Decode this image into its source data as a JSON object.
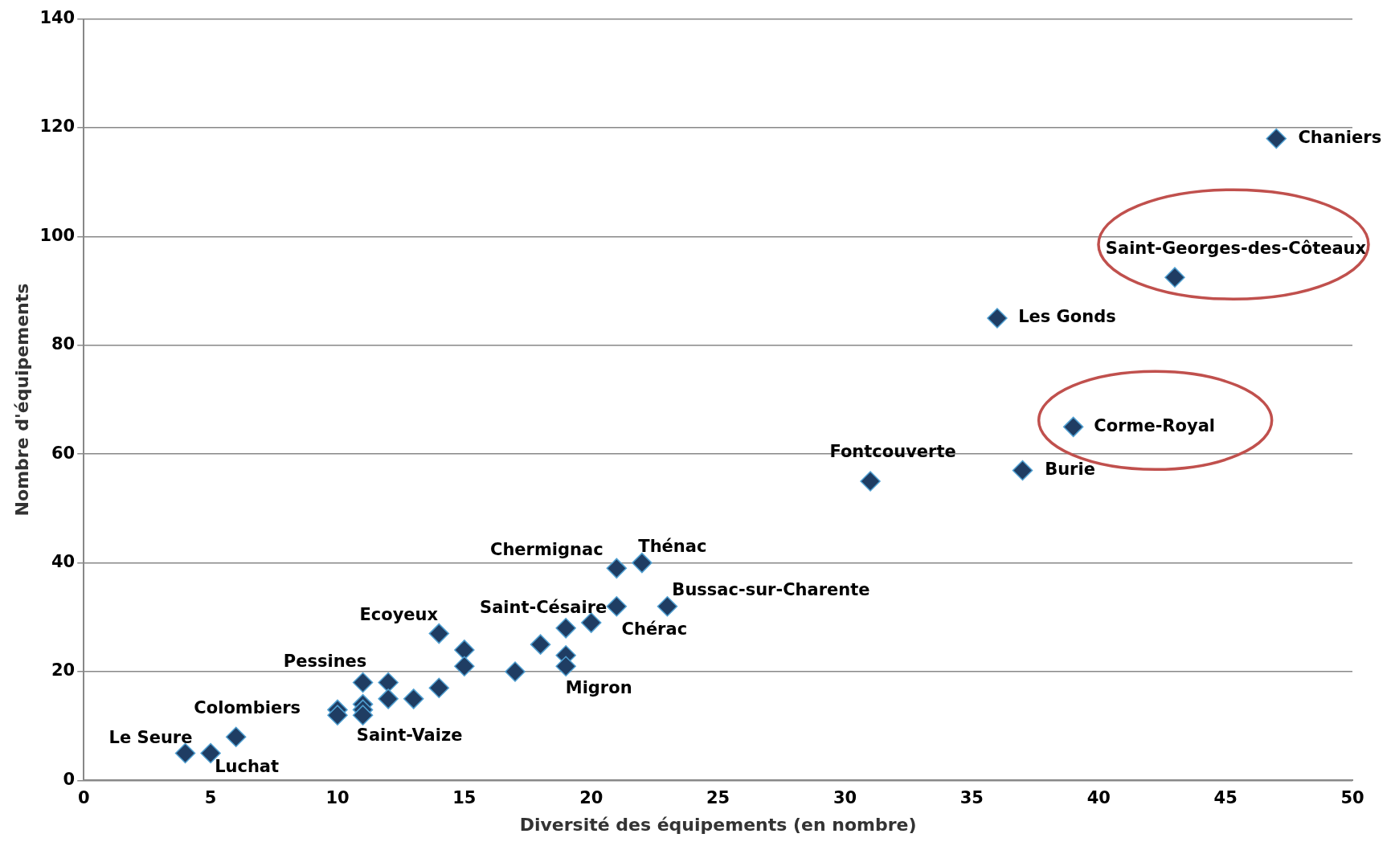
{
  "chart_data": {
    "type": "scatter",
    "xlabel": "Diversité des équipements (en nombre)",
    "ylabel": "Nombre d'équipements",
    "x": [
      4,
      5,
      6,
      10,
      10,
      11,
      11,
      11,
      11,
      12,
      12,
      13,
      14,
      14,
      15,
      15,
      17,
      18,
      19,
      19,
      19,
      20,
      21,
      21,
      22,
      23,
      31,
      36,
      37,
      39,
      43,
      47
    ],
    "series": [
      {
        "color": "#1f3d63",
        "values": [
          5,
          5,
          8,
          13,
          12,
          18,
          14,
          13,
          12,
          18,
          15,
          15,
          27,
          17,
          24,
          21,
          20,
          25,
          28,
          23,
          21,
          29,
          32,
          39,
          40,
          32,
          55,
          85,
          57,
          65,
          92.5,
          118
        ]
      }
    ],
    "xlim": [
      0,
      50
    ],
    "xticks": [
      0,
      5,
      10,
      15,
      20,
      25,
      30,
      35,
      40,
      45,
      50
    ],
    "ylim": [
      0,
      140
    ],
    "yticks": [
      0,
      20,
      40,
      60,
      80,
      100,
      120,
      140
    ],
    "grid": "y",
    "marker": "diamond",
    "legend": false,
    "annotations": [
      {
        "text": "Le Seure",
        "x": 4,
        "y": 5
      },
      {
        "text": "Luchat",
        "x": 5,
        "y": 5
      },
      {
        "text": "Colombiers",
        "x": 6,
        "y": 8
      },
      {
        "text": "Pessines",
        "x": 11,
        "y": 18
      },
      {
        "text": "Saint-Vaize",
        "x": 11,
        "y": 12
      },
      {
        "text": "Ecoyeux",
        "x": 14,
        "y": 27
      },
      {
        "text": "Saint-Césaire",
        "x": 19,
        "y": 28
      },
      {
        "text": "Chérac",
        "x": 21,
        "y": 32
      },
      {
        "text": "Migron",
        "x": 19,
        "y": 21
      },
      {
        "text": "Chermignac",
        "x": 21,
        "y": 39
      },
      {
        "text": "Thénac",
        "x": 22,
        "y": 40
      },
      {
        "text": "Bussac-sur-Charente",
        "x": 23,
        "y": 32
      },
      {
        "text": "Fontcouverte",
        "x": 31,
        "y": 55
      },
      {
        "text": "Burie",
        "x": 37,
        "y": 57
      },
      {
        "text": "Corme-Royal",
        "x": 39,
        "y": 65
      },
      {
        "text": "Les Gonds",
        "x": 36,
        "y": 85
      },
      {
        "text": "Saint-Georges-des-Côteaux",
        "x": 43,
        "y": 92.5
      },
      {
        "text": "Chaniers",
        "x": 47,
        "y": 118
      }
    ]
  }
}
